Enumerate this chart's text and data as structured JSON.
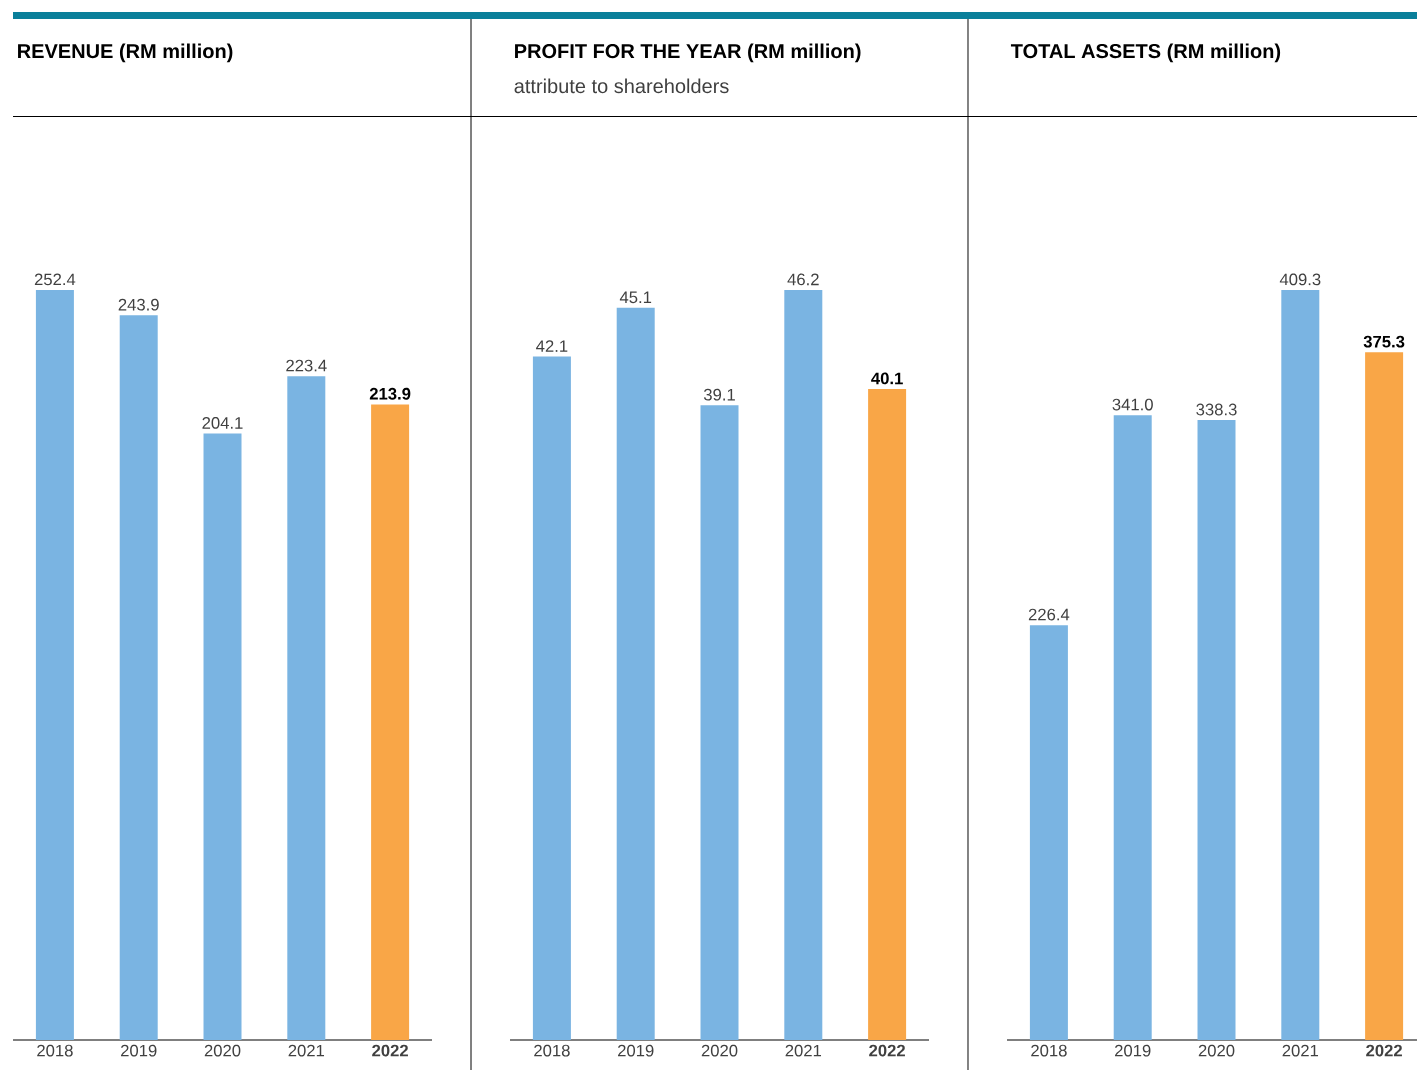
{
  "chart_data": [
    {
      "type": "bar",
      "title": "REVENUE (RM million)",
      "categories": [
        "2018",
        "2019",
        "2020",
        "2021",
        "2022"
      ],
      "values": [
        252.4,
        243.9,
        204.1,
        223.4,
        213.9
      ],
      "colors": [
        "#7ab4e2",
        "#7ab4e2",
        "#7ab4e2",
        "#7ab4e2",
        "#f9a647"
      ],
      "data_labels": true
    },
    {
      "type": "bar",
      "title": "PROFIT FOR THE YEAR (RM million)",
      "subtitle": "attribute to shareholders",
      "categories": [
        "2018",
        "2019",
        "2020",
        "2021",
        "2022"
      ],
      "values": [
        42.1,
        45.1,
        39.1,
        46.2,
        40.1
      ],
      "colors": [
        "#7ab4e2",
        "#7ab4e2",
        "#7ab4e2",
        "#7ab4e2",
        "#f9a647"
      ],
      "data_labels": true
    },
    {
      "type": "bar",
      "title": "TOTAL ASSETS (RM million)",
      "categories": [
        "2018",
        "2019",
        "2020",
        "2021",
        "2022"
      ],
      "values": [
        226.4,
        341.0,
        338.3,
        409.3,
        375.3
      ],
      "value_labels": [
        "226.4",
        "341.0",
        "338.3",
        "409.3",
        "375.3"
      ],
      "colors": [
        "#7ab4e2",
        "#7ab4e2",
        "#7ab4e2",
        "#7ab4e2",
        "#f9a647"
      ]
    }
  ]
}
